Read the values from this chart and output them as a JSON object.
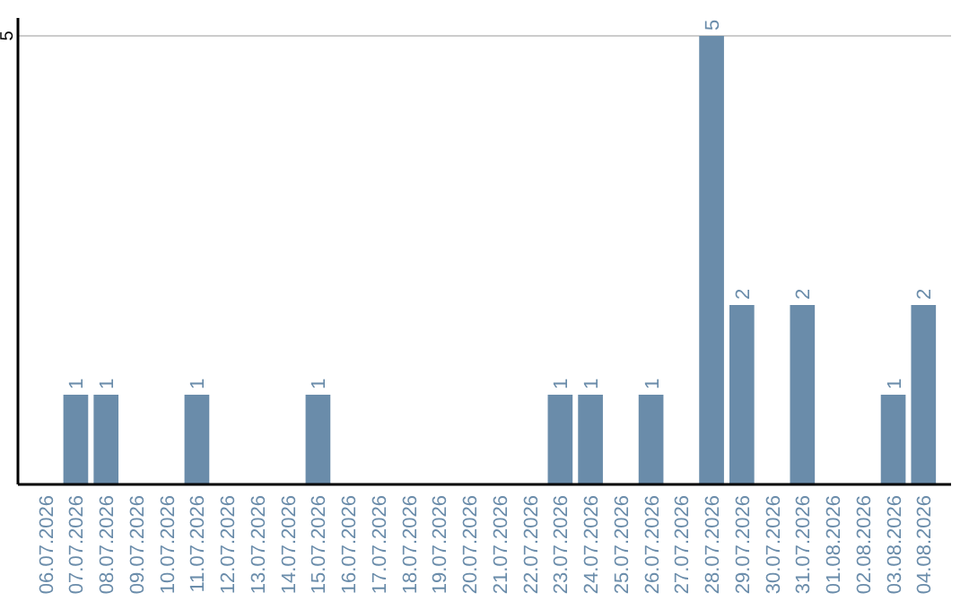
{
  "chart_data": {
    "type": "bar",
    "categories": [
      "06.07.2026",
      "07.07.2026",
      "08.07.2026",
      "09.07.2026",
      "10.07.2026",
      "11.07.2026",
      "12.07.2026",
      "13.07.2026",
      "14.07.2026",
      "15.07.2026",
      "16.07.2026",
      "17.07.2026",
      "18.07.2026",
      "19.07.2026",
      "20.07.2026",
      "21.07.2026",
      "22.07.2026",
      "23.07.2026",
      "24.07.2026",
      "25.07.2026",
      "26.07.2026",
      "27.07.2026",
      "28.07.2026",
      "29.07.2026",
      "30.07.2026",
      "31.07.2026",
      "01.08.2026",
      "02.08.2026",
      "03.08.2026",
      "04.08.2026"
    ],
    "values": [
      0,
      1,
      1,
      0,
      0,
      1,
      0,
      0,
      0,
      1,
      0,
      0,
      0,
      0,
      0,
      0,
      0,
      1,
      1,
      0,
      1,
      0,
      5,
      2,
      0,
      2,
      0,
      0,
      1,
      2
    ],
    "value_labels": [
      null,
      "1",
      "1",
      null,
      null,
      "1",
      null,
      null,
      null,
      "1",
      null,
      null,
      null,
      null,
      null,
      null,
      null,
      "1",
      "1",
      null,
      "1",
      null,
      "5",
      "2",
      null,
      "2",
      null,
      null,
      "1",
      "2"
    ],
    "color": "#6a8caa",
    "ylim": [
      0,
      5.2
    ],
    "yticks": [
      5
    ],
    "grid": "y"
  }
}
